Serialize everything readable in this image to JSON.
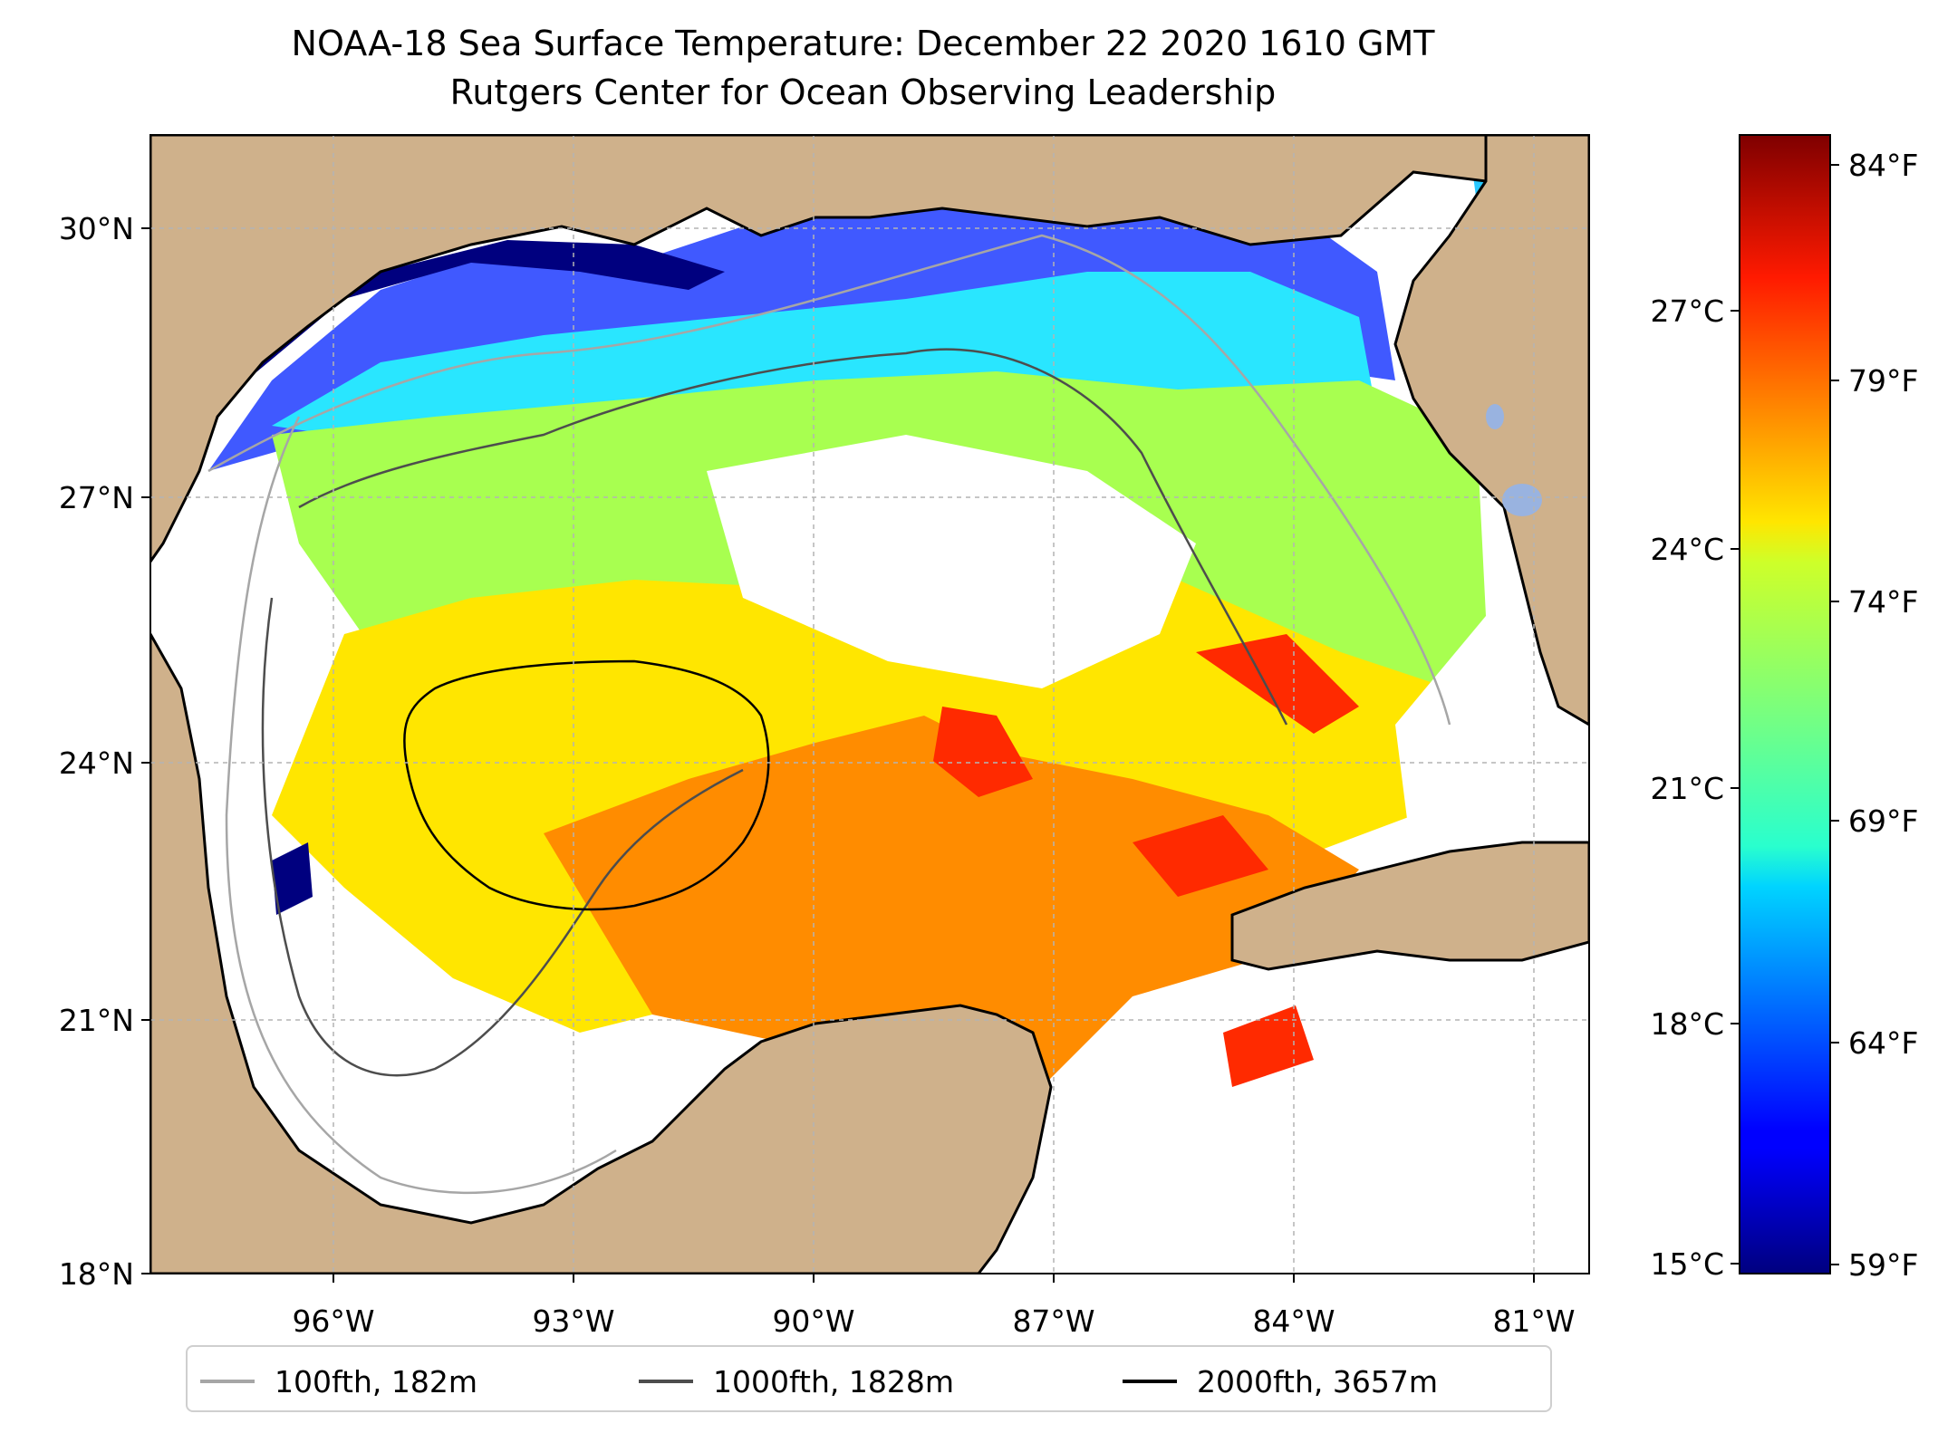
{
  "title": {
    "line1": "NOAA-18 Sea Surface Temperature: December 22 2020 1610 GMT",
    "line2": "Rutgers Center for Ocean Observing Leadership"
  },
  "map": {
    "lon_range": [
      -98.3,
      -80.3
    ],
    "lat_range": [
      18.0,
      31.0
    ],
    "lon_ticks": [
      "96°W",
      "93°W",
      "90°W",
      "87°W",
      "84°W",
      "81°W"
    ],
    "lat_ticks": [
      "18°N",
      "21°N",
      "24°N",
      "27°N",
      "30°N"
    ],
    "land_color": "#cfb18b",
    "lake_color": "#99b3e0",
    "gridline": "dashed-gray"
  },
  "colorbar": {
    "min_c": 15,
    "max_c": 29,
    "celsius_ticks": [
      "15°C",
      "18°C",
      "21°C",
      "24°C",
      "27°C"
    ],
    "fahrenheit_ticks": [
      "59°F",
      "64°F",
      "69°F",
      "74°F",
      "79°F",
      "84°F"
    ],
    "colormap": "jet"
  },
  "legend": [
    {
      "label": "100fth, 182m",
      "color": "#a6a6a6"
    },
    {
      "label": "1000fth, 1828m",
      "color": "#4d4d4d"
    },
    {
      "label": "2000fth, 3657m",
      "color": "#000000"
    }
  ]
}
